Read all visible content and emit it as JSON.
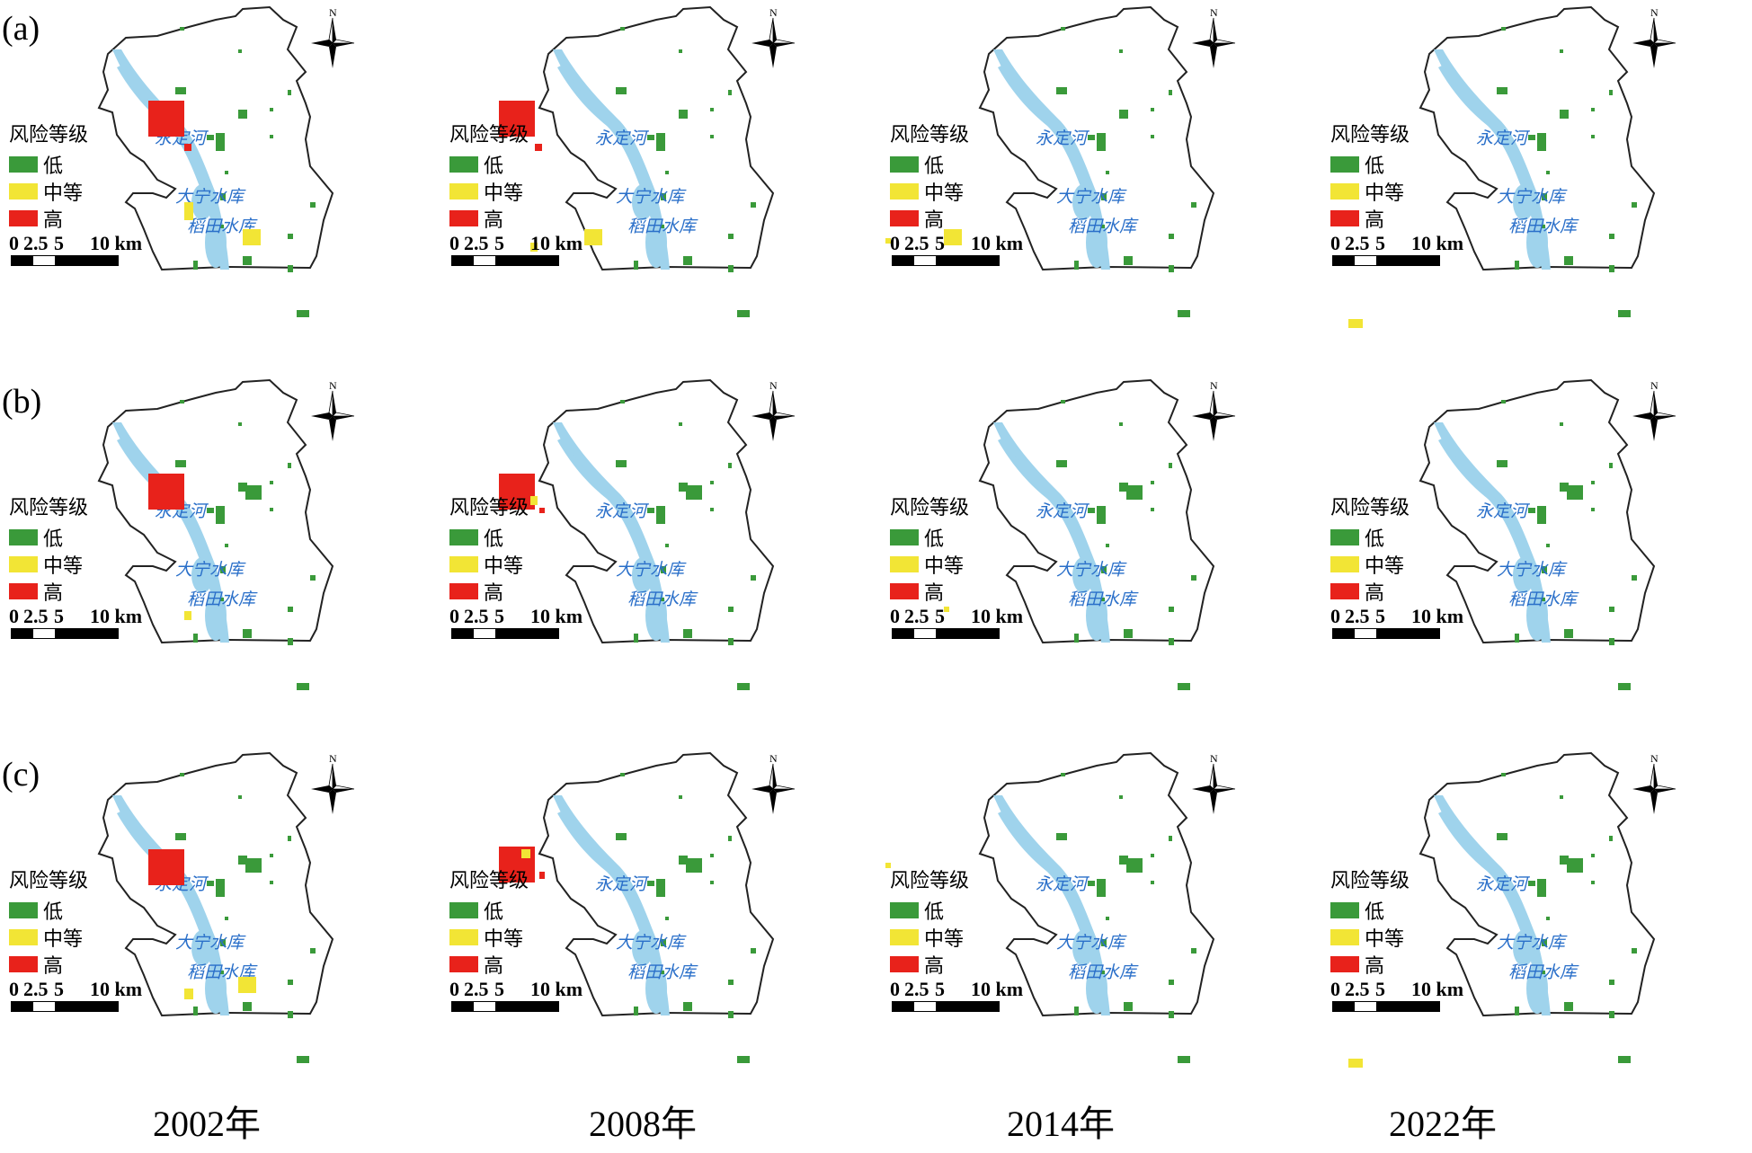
{
  "row_labels": [
    "(a)",
    "(b)",
    "(c)"
  ],
  "years": [
    "2002年",
    "2008年",
    "2014年",
    "2022年"
  ],
  "legend": {
    "title": "风险等级",
    "items": [
      {
        "label": "低",
        "color": "#3a9a3a"
      },
      {
        "label": "中等",
        "color": "#f2e535"
      },
      {
        "label": "高",
        "color": "#e8221b"
      }
    ]
  },
  "scale_bar": {
    "labels": [
      "0",
      "2.5",
      "5",
      "10 km"
    ]
  },
  "compass": {
    "north_label": "N"
  },
  "map_labels": {
    "river": "永定河",
    "reservoir_1": "大宁水库",
    "reservoir_2": "稻田水库"
  },
  "colors": {
    "water": "#9fd3ec",
    "low": "#3a9a3a",
    "medium": "#f2e535",
    "high": "#e8221b",
    "boundary": "#222222"
  }
}
